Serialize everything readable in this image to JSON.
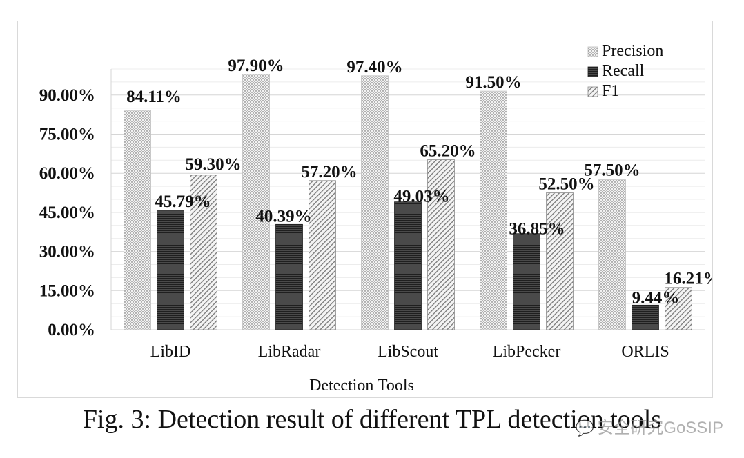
{
  "chart_data": {
    "type": "bar",
    "categories": [
      "LibID",
      "LibRadar",
      "LibScout",
      "LibPecker",
      "ORLIS"
    ],
    "series": [
      {
        "name": "Precision",
        "values": [
          84.11,
          97.9,
          97.4,
          91.5,
          57.5
        ]
      },
      {
        "name": "Recall",
        "values": [
          45.79,
          40.39,
          49.03,
          36.85,
          9.44
        ]
      },
      {
        "name": "F1",
        "values": [
          59.3,
          57.2,
          65.2,
          52.5,
          16.21
        ]
      }
    ],
    "data_labels": [
      [
        "84.11%",
        "45.79%",
        "59.30%"
      ],
      [
        "97.90%",
        "40.39%",
        "57.20%"
      ],
      [
        "97.40%",
        "49.03%",
        "65.20%"
      ],
      [
        "91.50%",
        "36.85%",
        "52.50%"
      ],
      [
        "57.50%",
        "9.44%",
        "16.21%"
      ]
    ],
    "yticks": [
      "0.00%",
      "15.00%",
      "30.00%",
      "45.00%",
      "60.00%",
      "75.00%",
      "90.00%"
    ],
    "ylim": [
      0,
      100
    ],
    "xlabel": "Detection Tools",
    "ylabel": "",
    "title": "",
    "legend_position": "top-right",
    "grid": true
  },
  "caption": "Fig. 3: Detection result of different TPL detection tools",
  "watermark": "安全研究GoSSIP",
  "watermark_icon": "wechat-icon"
}
